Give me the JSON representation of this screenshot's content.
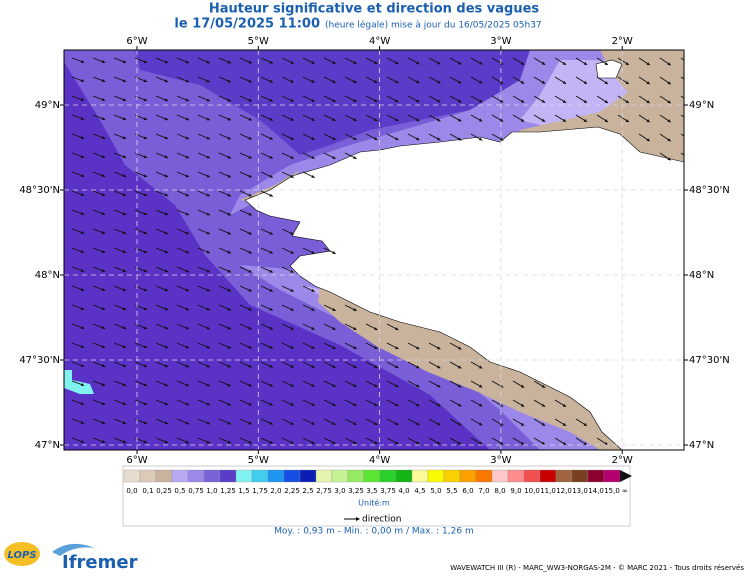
{
  "header": {
    "title": "Hauteur significative et direction des vagues",
    "date": "le 17/05/2025 11:00",
    "update": "(heure légale) mise à jour du 16/05/2025 05h37"
  },
  "map": {
    "lon_ticks": [
      "6°W",
      "5°W",
      "4°W",
      "3°W",
      "2°W"
    ],
    "lat_ticks": [
      "49°N",
      "48°30'N",
      "48°N",
      "47°30'N",
      "47°N"
    ]
  },
  "colorbar": {
    "labels": [
      "0,0",
      "0,1",
      "0,25",
      "0,5",
      "0,75",
      "1,0",
      "1,25",
      "1,5",
      "1,75",
      "2,0",
      "2,25",
      "2,5",
      "2,75",
      "3,0",
      "3,25",
      "3,5",
      "3,75",
      "4,0",
      "4,5",
      "5,0",
      "5,5",
      "6,0",
      "7,0",
      "8,0",
      "9,0",
      "10,0",
      "11,0",
      "12,0",
      "13,0",
      "14,0",
      "15,0"
    ],
    "end_label": "∞",
    "colors": [
      "#e8dccf",
      "#dccab8",
      "#c9b39d",
      "#b9a9f2",
      "#9c89e8",
      "#7a62d9",
      "#5a3cc8",
      "#80f2f2",
      "#40cdf0",
      "#1e95f0",
      "#1450e6",
      "#0a1eb4",
      "#e4f5b0",
      "#c6f294",
      "#96eb64",
      "#5ae632",
      "#28d228",
      "#14b414",
      "#fafa96",
      "#fafa00",
      "#fad200",
      "#faa000",
      "#fa7800",
      "#ffc8c8",
      "#ff8c8c",
      "#f05050",
      "#c80000",
      "#a06440",
      "#784020",
      "#8c0030",
      "#b4006e"
    ],
    "end_color": "#111111",
    "unit": "Unité:m"
  },
  "legend": {
    "direction": "direction"
  },
  "stats": "Moy. : 0,93 m   -   Min. : 0,00 m / Max. : 1,26 m",
  "footer": {
    "lops": "LOPS",
    "ifremer": "Ifremer",
    "credit": "WAVEWATCH III (R) - MARC_WW3-NORGAS-2M - © MARC 2021 - Tous droits réservés"
  }
}
